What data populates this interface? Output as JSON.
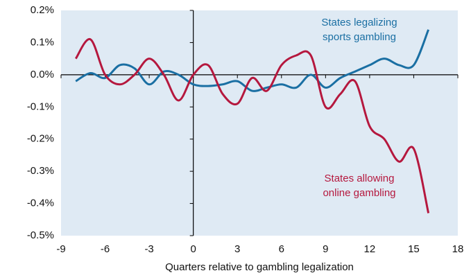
{
  "chart_data": {
    "type": "line",
    "xlabel": "Quarters relative to gambling legalization",
    "x": [
      -8,
      -7,
      -6,
      -5,
      -4,
      -3,
      -2,
      -1,
      0,
      1,
      2,
      3,
      4,
      5,
      6,
      7,
      8,
      9,
      10,
      11,
      12,
      13,
      14,
      15,
      16
    ],
    "series": [
      {
        "label": [
          "States legalizing",
          "sports gambling"
        ],
        "color": "#1a6fa3",
        "values": [
          -0.02,
          0.005,
          -0.01,
          0.03,
          0.02,
          -0.03,
          0.01,
          0.0,
          -0.03,
          -0.035,
          -0.03,
          -0.02,
          -0.05,
          -0.04,
          -0.03,
          -0.04,
          0.0,
          -0.04,
          -0.01,
          0.01,
          0.03,
          0.05,
          0.03,
          0.03,
          0.14
        ]
      },
      {
        "label": [
          "States allowing",
          "online gambling"
        ],
        "color": "#b5183e",
        "values": [
          0.05,
          0.11,
          0.0,
          -0.03,
          0.0,
          0.05,
          0.0,
          -0.08,
          0.0,
          0.03,
          -0.06,
          -0.09,
          -0.01,
          -0.05,
          0.03,
          0.06,
          0.06,
          -0.1,
          -0.06,
          -0.02,
          -0.16,
          -0.2,
          -0.27,
          -0.23,
          -0.43
        ]
      }
    ],
    "xlim": [
      -9,
      18
    ],
    "xticks": [
      -9,
      -6,
      -3,
      0,
      3,
      6,
      9,
      12,
      15,
      18
    ],
    "ylim": [
      -0.5,
      0.2
    ],
    "yticks": [
      {
        "value": -0.5,
        "label": "-0.5%"
      },
      {
        "value": -0.4,
        "label": "-0.4%"
      },
      {
        "value": -0.3,
        "label": "-0.3%"
      },
      {
        "value": -0.2,
        "label": "-0.2%"
      },
      {
        "value": -0.1,
        "label": "-0.1%"
      },
      {
        "value": 0.0,
        "label": "0.0%"
      },
      {
        "value": 0.1,
        "label": "0.1%"
      },
      {
        "value": 0.2,
        "label": "0.2%"
      }
    ],
    "background": "#dfeaf4"
  }
}
